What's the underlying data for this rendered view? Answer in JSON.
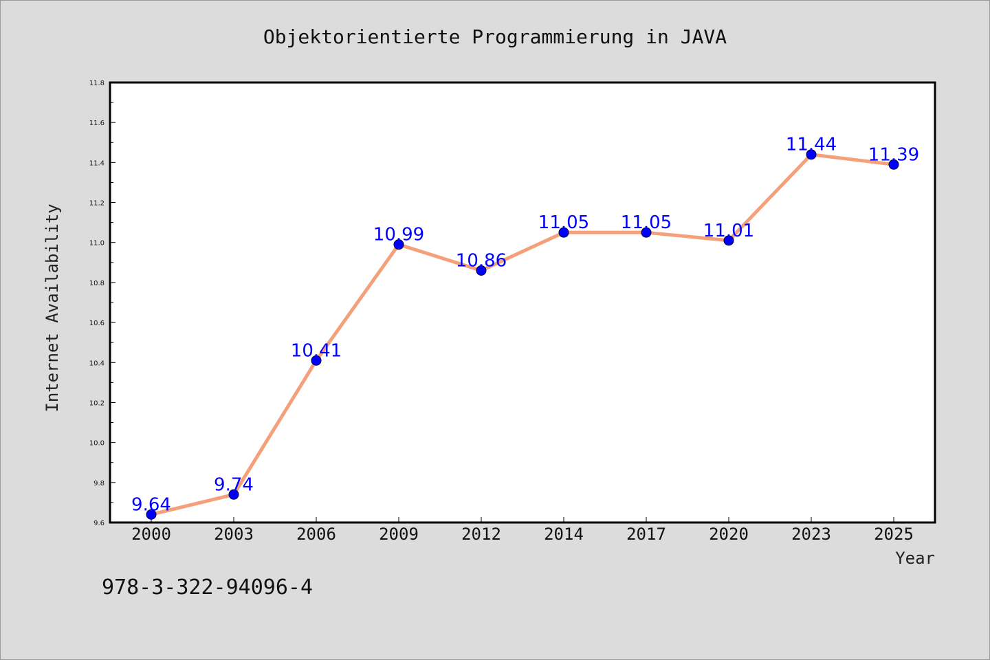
{
  "chart_data": {
    "type": "line",
    "title": "Objektorientierte Programmierung in JAVA",
    "xlabel": "Year",
    "ylabel": "Internet Availability",
    "x": [
      "2000",
      "2003",
      "2006",
      "2009",
      "2012",
      "2014",
      "2017",
      "2020",
      "2023",
      "2025"
    ],
    "series": [
      {
        "values": [
          9.64,
          9.74,
          10.41,
          10.99,
          10.86,
          11.05,
          11.05,
          11.01,
          11.44,
          11.39
        ],
        "data_labels": [
          "9.64",
          "9.74",
          "10.41",
          "10.99",
          "10.86",
          "11.05",
          "11.05",
          "11.01",
          "11.44",
          "11.39"
        ]
      }
    ],
    "ylim": [
      9.6,
      11.8
    ],
    "yticks": [
      "9.6",
      "9.8",
      "10.0",
      "10.2",
      "10.4",
      "10.6",
      "10.8",
      "11.0",
      "11.2",
      "11.4",
      "11.6",
      "11.8"
    ],
    "grid": false,
    "legend": "none",
    "colors": {
      "line": "#f4a07a",
      "marker": "#0000ff",
      "data_label": "#0000ff",
      "background": "#dcdcdc",
      "plot_background": "#ffffff"
    }
  },
  "footer": {
    "isbn": "978-3-322-94096-4"
  }
}
